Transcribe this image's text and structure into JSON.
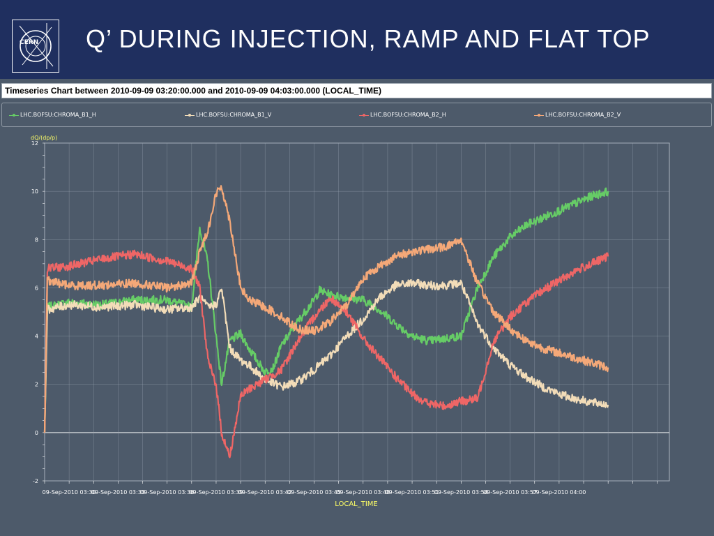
{
  "slide": {
    "title": "Q’ during injection, ramp and flat top",
    "logo_text": "CERN"
  },
  "chart_header": {
    "title": "Timeseries Chart between 2010-09-09 03:20:00.000 and 2010-09-09 04:03:00.000 (LOCAL_TIME)"
  },
  "colors": {
    "slide_background": "#4d5a6a",
    "header_background": "#1f2f5f",
    "axis_label": "#ffff66",
    "gridline": "#9aa6b3",
    "zero_line": "#ffffff"
  },
  "chart_data": {
    "type": "line",
    "title": "Timeseries Chart between 2010-09-09 03:20:00.000 and 2010-09-09 04:03:00.000 (LOCAL_TIME)",
    "xlabel": "LOCAL_TIME",
    "ylabel": "dQ/(dp/p)",
    "xlim": [
      "2010-09-09 03:28:30",
      "2010-09-09 04:06:45"
    ],
    "ylim": [
      -2,
      12
    ],
    "y_ticks": [
      -2,
      0,
      2,
      4,
      6,
      8,
      10,
      12
    ],
    "x_ticks": [
      "09-Sep-2010 03:30",
      "09-Sep-2010 03:33",
      "09-Sep-2010 03:36",
      "09-Sep-2010 03:39",
      "09-Sep-2010 03:42",
      "09-Sep-2010 03:45",
      "09-Sep-2010 03:48",
      "09-Sep-2010 03:51",
      "09-Sep-2010 03:54",
      "09-Sep-2010 03:57",
      "09-Sep-2010 04:00"
    ],
    "grid": true,
    "legend_position": "top",
    "series": [
      {
        "name": "LHC.BOFSU:CHROMA_B1_H",
        "color": "#66cc66",
        "points": [
          [
            "03:28:30",
            0.0
          ],
          [
            "03:28:40",
            5.2
          ],
          [
            "03:30:00",
            5.4
          ],
          [
            "03:32:00",
            5.3
          ],
          [
            "03:34:00",
            5.5
          ],
          [
            "03:36:00",
            5.5
          ],
          [
            "03:37:30",
            5.2
          ],
          [
            "03:38:00",
            8.5
          ],
          [
            "03:38:30",
            7.0
          ],
          [
            "03:39:00",
            4.0
          ],
          [
            "03:39:20",
            2.0
          ],
          [
            "03:39:50",
            3.8
          ],
          [
            "03:40:30",
            4.1
          ],
          [
            "03:41:00",
            3.5
          ],
          [
            "03:42:00",
            2.5
          ],
          [
            "03:42:30",
            2.7
          ],
          [
            "03:43:00",
            3.6
          ],
          [
            "03:44:00",
            4.6
          ],
          [
            "03:45:00",
            5.5
          ],
          [
            "03:45:20",
            5.9
          ],
          [
            "03:46:00",
            5.7
          ],
          [
            "03:47:00",
            5.6
          ],
          [
            "03:48:00",
            5.5
          ],
          [
            "03:49:00",
            5.1
          ],
          [
            "03:50:00",
            4.5
          ],
          [
            "03:51:00",
            4.0
          ],
          [
            "03:52:00",
            3.8
          ],
          [
            "03:53:00",
            3.9
          ],
          [
            "03:54:00",
            4.0
          ],
          [
            "03:55:00",
            6.0
          ],
          [
            "03:56:00",
            7.3
          ],
          [
            "03:57:00",
            8.1
          ],
          [
            "03:58:00",
            8.6
          ],
          [
            "03:59:00",
            8.9
          ],
          [
            "04:00:00",
            9.2
          ],
          [
            "04:01:00",
            9.5
          ],
          [
            "04:02:00",
            9.8
          ],
          [
            "04:03:00",
            10.0
          ]
        ]
      },
      {
        "name": "LHC.BOFSU:CHROMA_B1_V",
        "color": "#f2dcb8",
        "points": [
          [
            "03:28:30",
            0.0
          ],
          [
            "03:28:40",
            5.1
          ],
          [
            "03:30:00",
            5.3
          ],
          [
            "03:32:00",
            5.2
          ],
          [
            "03:34:00",
            5.3
          ],
          [
            "03:36:00",
            5.1
          ],
          [
            "03:37:30",
            5.2
          ],
          [
            "03:38:00",
            5.6
          ],
          [
            "03:38:30",
            5.2
          ],
          [
            "03:39:00",
            5.3
          ],
          [
            "03:39:20",
            6.0
          ],
          [
            "03:39:50",
            3.5
          ],
          [
            "03:40:30",
            3.0
          ],
          [
            "03:41:00",
            2.8
          ],
          [
            "03:42:00",
            2.2
          ],
          [
            "03:43:00",
            1.9
          ],
          [
            "03:44:00",
            2.1
          ],
          [
            "03:45:00",
            2.6
          ],
          [
            "03:46:00",
            3.2
          ],
          [
            "03:47:00",
            4.0
          ],
          [
            "03:48:00",
            4.7
          ],
          [
            "03:49:00",
            5.6
          ],
          [
            "03:50:00",
            6.1
          ],
          [
            "03:51:00",
            6.2
          ],
          [
            "03:52:00",
            6.1
          ],
          [
            "03:53:00",
            6.1
          ],
          [
            "03:54:00",
            6.2
          ],
          [
            "03:55:00",
            4.5
          ],
          [
            "03:56:00",
            3.5
          ],
          [
            "03:57:00",
            2.8
          ],
          [
            "03:58:00",
            2.3
          ],
          [
            "03:59:00",
            1.9
          ],
          [
            "04:00:00",
            1.6
          ],
          [
            "04:01:00",
            1.4
          ],
          [
            "04:02:00",
            1.25
          ],
          [
            "04:03:00",
            1.15
          ]
        ]
      },
      {
        "name": "LHC.BOFSU:CHROMA_B2_H",
        "color": "#ee6666",
        "points": [
          [
            "03:28:30",
            0.0
          ],
          [
            "03:28:40",
            6.8
          ],
          [
            "03:30:00",
            6.9
          ],
          [
            "03:32:00",
            7.2
          ],
          [
            "03:34:00",
            7.4
          ],
          [
            "03:36:00",
            7.1
          ],
          [
            "03:37:30",
            6.8
          ],
          [
            "03:38:00",
            6.0
          ],
          [
            "03:38:30",
            3.0
          ],
          [
            "03:39:00",
            2.0
          ],
          [
            "03:39:20",
            0.0
          ],
          [
            "03:39:50",
            -1.0
          ],
          [
            "03:40:30",
            1.5
          ],
          [
            "03:41:00",
            1.8
          ],
          [
            "03:42:00",
            2.2
          ],
          [
            "03:43:00",
            2.6
          ],
          [
            "03:44:00",
            3.8
          ],
          [
            "03:45:00",
            4.8
          ],
          [
            "03:46:00",
            5.6
          ],
          [
            "03:47:00",
            5.0
          ],
          [
            "03:48:00",
            3.9
          ],
          [
            "03:49:00",
            3.1
          ],
          [
            "03:50:00",
            2.3
          ],
          [
            "03:51:00",
            1.6
          ],
          [
            "03:52:00",
            1.2
          ],
          [
            "03:53:00",
            1.1
          ],
          [
            "03:54:00",
            1.3
          ],
          [
            "03:55:00",
            1.4
          ],
          [
            "03:56:00",
            3.8
          ],
          [
            "03:57:00",
            4.8
          ],
          [
            "03:58:00",
            5.4
          ],
          [
            "03:59:00",
            5.9
          ],
          [
            "04:00:00",
            6.3
          ],
          [
            "04:01:00",
            6.7
          ],
          [
            "04:02:00",
            7.0
          ],
          [
            "04:03:00",
            7.3
          ]
        ]
      },
      {
        "name": "LHC.BOFSU:CHROMA_B2_V",
        "color": "#f4a878",
        "points": [
          [
            "03:28:30",
            0.0
          ],
          [
            "03:28:40",
            6.3
          ],
          [
            "03:30:00",
            6.1
          ],
          [
            "03:32:00",
            6.1
          ],
          [
            "03:34:00",
            6.2
          ],
          [
            "03:36:00",
            6.0
          ],
          [
            "03:37:30",
            6.2
          ],
          [
            "03:38:00",
            7.5
          ],
          [
            "03:38:30",
            8.4
          ],
          [
            "03:39:00",
            9.9
          ],
          [
            "03:39:20",
            10.2
          ],
          [
            "03:39:50",
            8.8
          ],
          [
            "03:40:30",
            6.0
          ],
          [
            "03:41:00",
            5.5
          ],
          [
            "03:42:00",
            5.2
          ],
          [
            "03:43:00",
            4.8
          ],
          [
            "03:44:00",
            4.3
          ],
          [
            "03:45:00",
            4.2
          ],
          [
            "03:46:00",
            4.6
          ],
          [
            "03:47:00",
            5.3
          ],
          [
            "03:48:00",
            6.4
          ],
          [
            "03:49:00",
            6.9
          ],
          [
            "03:50:00",
            7.3
          ],
          [
            "03:51:00",
            7.5
          ],
          [
            "03:52:00",
            7.6
          ],
          [
            "03:53:00",
            7.7
          ],
          [
            "03:54:00",
            8.0
          ],
          [
            "03:55:00",
            6.2
          ],
          [
            "03:56:00",
            5.0
          ],
          [
            "03:57:00",
            4.3
          ],
          [
            "03:58:00",
            3.8
          ],
          [
            "03:59:00",
            3.5
          ],
          [
            "04:00:00",
            3.3
          ],
          [
            "04:01:00",
            3.1
          ],
          [
            "04:02:00",
            2.9
          ],
          [
            "04:03:00",
            2.7
          ]
        ]
      }
    ]
  }
}
